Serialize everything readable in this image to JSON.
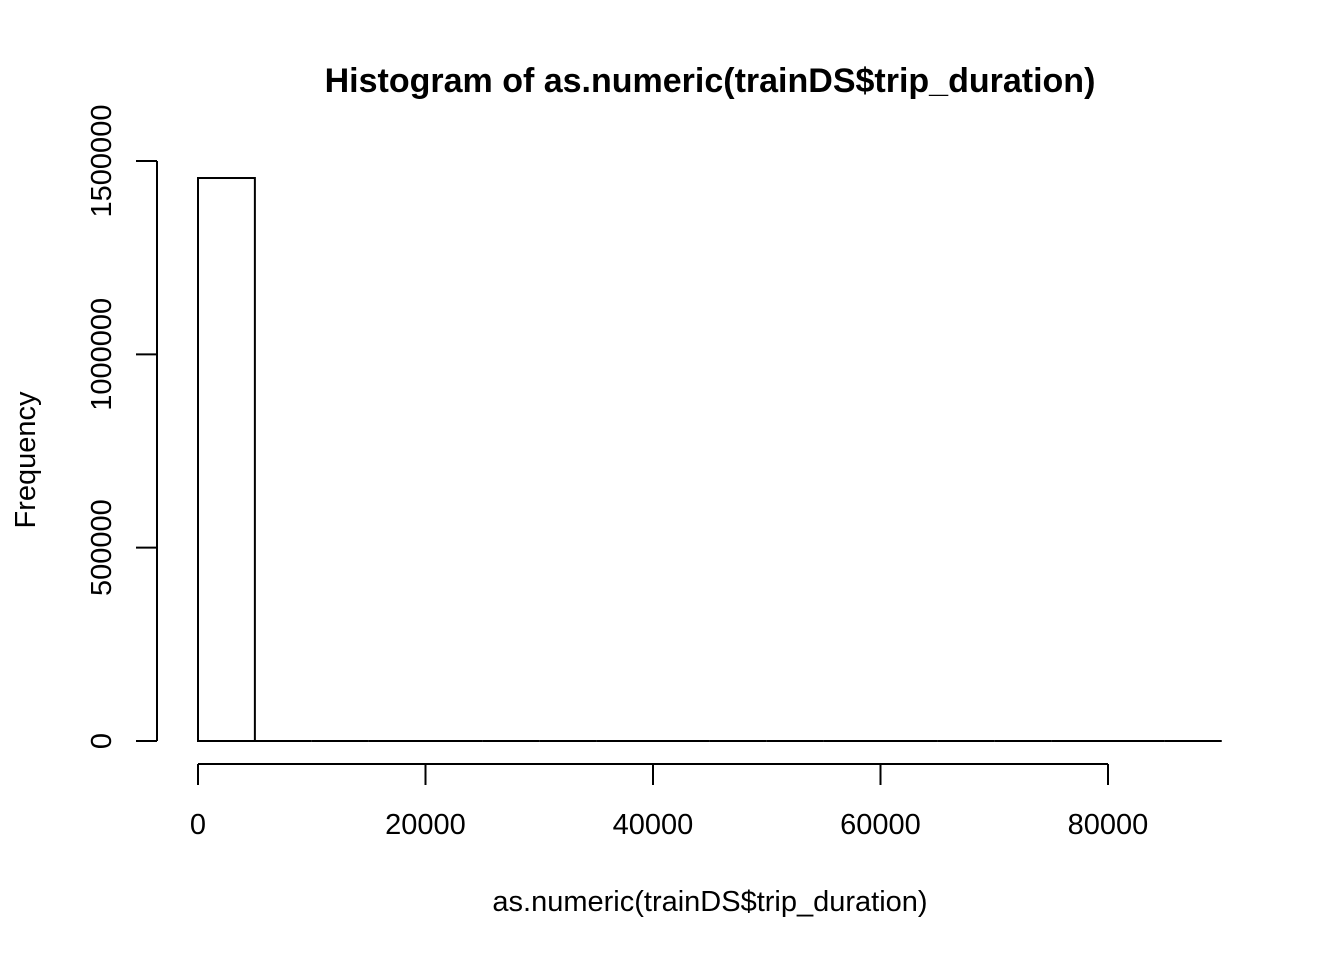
{
  "chart_data": {
    "type": "bar",
    "title": "Histogram of as.numeric(trainDS$trip_duration)",
    "xlabel": "as.numeric(trainDS$trip_duration)",
    "ylabel": "Frequency",
    "bin_edges": [
      0,
      5000,
      10000,
      15000,
      20000,
      25000,
      30000,
      35000,
      40000,
      45000,
      50000,
      55000,
      60000,
      65000,
      70000,
      75000,
      80000,
      85000,
      90000
    ],
    "values": [
      1456000,
      0,
      0,
      0,
      0,
      0,
      0,
      0,
      0,
      0,
      0,
      0,
      0,
      0,
      0,
      0,
      0,
      0
    ],
    "xlim": [
      0,
      90000
    ],
    "ylim": [
      0,
      1500000
    ],
    "x_ticks": [
      0,
      20000,
      40000,
      60000,
      80000
    ],
    "x_tick_labels": [
      "0",
      "20000",
      "40000",
      "60000",
      "80000"
    ],
    "y_ticks": [
      0,
      500000,
      1000000,
      1500000
    ],
    "y_tick_labels": [
      "0",
      "500000",
      "1000000",
      "1500000"
    ],
    "grid": false,
    "legend": "none"
  }
}
